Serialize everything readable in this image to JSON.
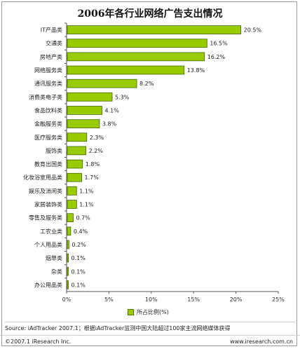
{
  "title": "2006年各行业网络广告支出情况",
  "legend": {
    "label": "所占比例(%)",
    "color": "#99cc00"
  },
  "source": "Source:  iAdTracker 2007.1；根据iAdTracker监测中国大陆超过100家主流网络媒体获得",
  "footer": {
    "copyright": "©2007.1  iResearch Inc.",
    "url": "www.iresearch.com.cn"
  },
  "chart_data": {
    "type": "bar",
    "orientation": "horizontal",
    "title": "2006年各行业网络广告支出情况",
    "categories": [
      "IT产品类",
      "交通类",
      "房地产类",
      "网络服务类",
      "通讯服务类",
      "消费类电子类",
      "食品饮料类",
      "金融服务类",
      "医疗服务类",
      "服饰类",
      "教育出国类",
      "化妆浴室用品类",
      "娱乐及消闲类",
      "家居装饰类",
      "零售及服务类",
      "工农业类",
      "个人用品类",
      "烟草类",
      "杂类",
      "办公用品类"
    ],
    "series": [
      {
        "name": "所占比例(%)",
        "values": [
          20.5,
          16.5,
          16.2,
          13.8,
          8.2,
          5.3,
          4.1,
          3.8,
          2.3,
          2.2,
          1.8,
          1.7,
          1.1,
          1.1,
          0.7,
          0.4,
          0.2,
          0.1,
          0.1,
          0.1
        ],
        "labels": [
          "20.5%",
          "16.5%",
          "16.2%",
          "13.8%",
          "8.2%",
          "5.3%",
          "4.1%",
          "3.8%",
          "2.3%",
          "2.2%",
          "1.8%",
          "1.7%",
          "1.1%",
          "1.1%",
          "0.7%",
          "0.4%",
          "0.2%",
          "0.1%",
          "0.1%",
          "0.1%"
        ]
      }
    ],
    "xlim": [
      0,
      25
    ],
    "xticks": [
      "0%",
      "5%",
      "10%",
      "15%",
      "20%",
      "25%"
    ],
    "legend_position": "bottom",
    "grid": false,
    "bar_color": "#99cc00"
  }
}
